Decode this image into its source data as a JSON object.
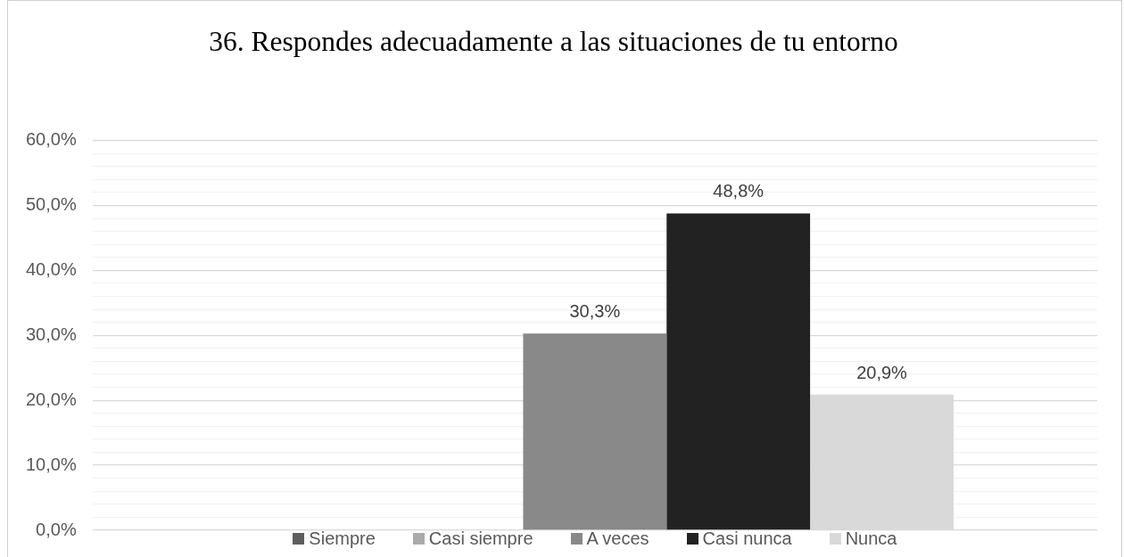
{
  "chart_data": {
    "type": "bar",
    "title": "36. Respondes adecuadamente a las situaciones de tu entorno",
    "categories": [
      null
    ],
    "series": [
      {
        "name": "Siempre",
        "color": "#5e5e5e",
        "values": [
          null
        ]
      },
      {
        "name": "Casi siempre",
        "color": "#ababab",
        "values": [
          null
        ]
      },
      {
        "name": "A veces",
        "color": "#898989",
        "values": [
          30.3
        ],
        "value_labels": [
          "30,3%"
        ]
      },
      {
        "name": "Casi nunca",
        "color": "#222222",
        "values": [
          48.8
        ],
        "value_labels": [
          "48,8%"
        ]
      },
      {
        "name": "Nunca",
        "color": "#d9d9d9",
        "values": [
          20.9
        ],
        "value_labels": [
          "20,9%"
        ]
      }
    ],
    "ylim": [
      0,
      60
    ],
    "yticks": [
      {
        "value": 0,
        "label": "0,0%"
      },
      {
        "value": 2,
        "label": null
      },
      {
        "value": 4,
        "label": null
      },
      {
        "value": 6,
        "label": null
      },
      {
        "value": 8,
        "label": null
      },
      {
        "value": 10,
        "label": "10,0%"
      },
      {
        "value": 12,
        "label": null
      },
      {
        "value": 14,
        "label": null
      },
      {
        "value": 16,
        "label": null
      },
      {
        "value": 18,
        "label": null
      },
      {
        "value": 20,
        "label": "20,0%"
      },
      {
        "value": 22,
        "label": null
      },
      {
        "value": 24,
        "label": null
      },
      {
        "value": 26,
        "label": null
      },
      {
        "value": 28,
        "label": null
      },
      {
        "value": 30,
        "label": "30,0%"
      },
      {
        "value": 32,
        "label": null
      },
      {
        "value": 34,
        "label": null
      },
      {
        "value": 36,
        "label": null
      },
      {
        "value": 38,
        "label": null
      },
      {
        "value": 40,
        "label": "40,0%"
      },
      {
        "value": 42,
        "label": null
      },
      {
        "value": 44,
        "label": null
      },
      {
        "value": 46,
        "label": null
      },
      {
        "value": 48,
        "label": null
      },
      {
        "value": 50,
        "label": "50,0%"
      },
      {
        "value": 52,
        "label": null
      },
      {
        "value": 54,
        "label": null
      },
      {
        "value": 56,
        "label": null
      },
      {
        "value": 58,
        "label": null
      },
      {
        "value": 60,
        "label": "60,0%"
      }
    ],
    "grid": "y",
    "legend": "bottom",
    "tick_labels": "y"
  }
}
